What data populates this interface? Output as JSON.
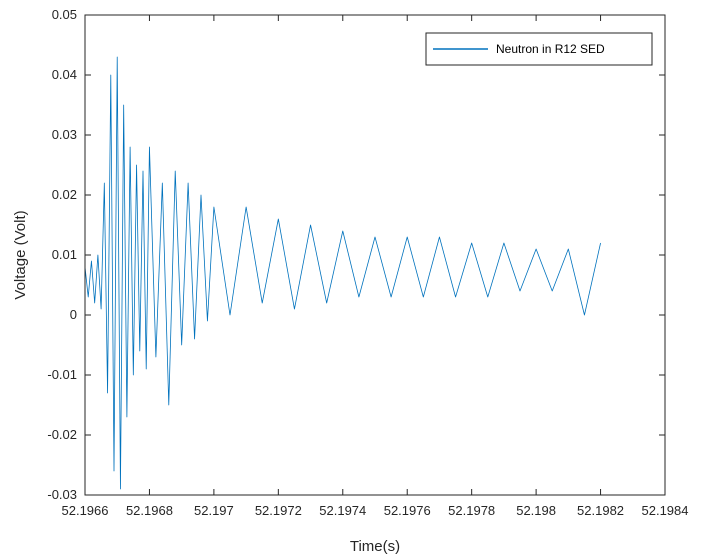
{
  "chart_data": {
    "type": "line",
    "xlabel": "Time(s)",
    "ylabel": "Voltage (Volt)",
    "xlim": [
      52.1966,
      52.1984
    ],
    "ylim": [
      -0.03,
      0.05
    ],
    "xticks": [
      52.1966,
      52.1968,
      52.197,
      52.1972,
      52.1974,
      52.1976,
      52.1978,
      52.198,
      52.1982,
      52.1984
    ],
    "xtick_labels": [
      "52.1966",
      "52.1968",
      "52.197",
      "52.1972",
      "52.1974",
      "52.1976",
      "52.1978",
      "52.198",
      "52.1982",
      "52.1984"
    ],
    "yticks": [
      -0.03,
      -0.02,
      -0.01,
      0,
      0.01,
      0.02,
      0.03,
      0.04,
      0.05
    ],
    "ytick_labels": [
      "-0.03",
      "-0.02",
      "-0.01",
      "0",
      "0.01",
      "0.02",
      "0.03",
      "0.04",
      "0.05"
    ],
    "grid": false,
    "legend_position": "top-right",
    "series": [
      {
        "name": "Neutron in R12 SED",
        "color": "#0072BD",
        "x": [
          52.1966,
          52.19661,
          52.19662,
          52.19663,
          52.19664,
          52.19665,
          52.19666,
          52.19667,
          52.19668,
          52.19669,
          52.1967,
          52.19671,
          52.19672,
          52.19673,
          52.19674,
          52.19675,
          52.19676,
          52.19677,
          52.19678,
          52.19679,
          52.1968,
          52.19682,
          52.19684,
          52.19686,
          52.19688,
          52.1969,
          52.19692,
          52.19694,
          52.19696,
          52.19698,
          52.197,
          52.19705,
          52.1971,
          52.19715,
          52.1972,
          52.19725,
          52.1973,
          52.19735,
          52.1974,
          52.19745,
          52.1975,
          52.19755,
          52.1976,
          52.19765,
          52.1977,
          52.19775,
          52.1978,
          52.19785,
          52.1979,
          52.19795,
          52.198,
          52.19805,
          52.1981,
          52.19815,
          52.1982
        ],
        "y": [
          0.008,
          0.003,
          0.009,
          0.002,
          0.01,
          0.001,
          0.022,
          -0.013,
          0.04,
          -0.026,
          0.043,
          -0.029,
          0.035,
          -0.017,
          0.028,
          -0.01,
          0.025,
          -0.006,
          0.024,
          -0.009,
          0.028,
          -0.007,
          0.022,
          -0.015,
          0.024,
          -0.005,
          0.022,
          -0.004,
          0.02,
          -0.001,
          0.018,
          0.0,
          0.018,
          0.002,
          0.016,
          0.001,
          0.015,
          0.002,
          0.014,
          0.003,
          0.013,
          0.003,
          0.013,
          0.003,
          0.013,
          0.003,
          0.012,
          0.003,
          0.012,
          0.004,
          0.011,
          0.004,
          0.011,
          0.0,
          0.012
        ]
      }
    ]
  }
}
